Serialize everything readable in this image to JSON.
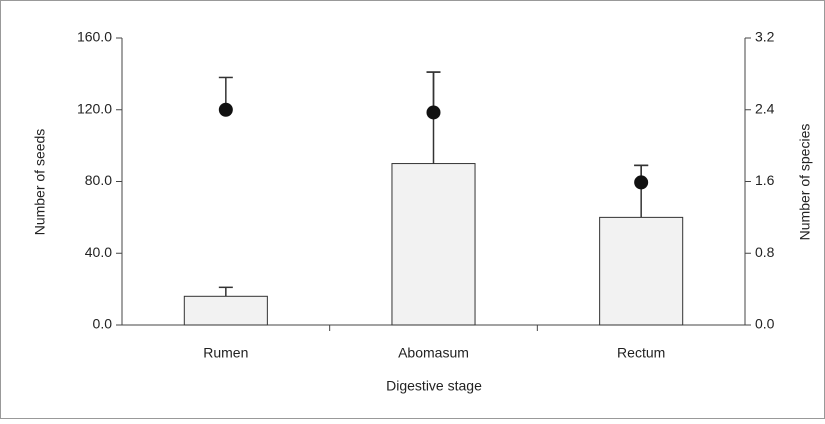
{
  "chart_data": {
    "type": "bar",
    "categories": [
      "Rumen",
      "Abomasum",
      "Rectum"
    ],
    "xlabel": "Digestive stage",
    "ylabel": "Number of seeds",
    "y2label": "Number of species",
    "ylim": [
      0,
      160
    ],
    "yticks": [
      {
        "value": 0,
        "label": "0.0"
      },
      {
        "value": 40,
        "label": "40.0"
      },
      {
        "value": 80,
        "label": "80.0"
      },
      {
        "value": 120,
        "label": "120.0"
      },
      {
        "value": 160,
        "label": "160.0"
      }
    ],
    "y2lim": [
      0,
      3.2
    ],
    "y2ticks": [
      {
        "value": 0,
        "label": "0.0"
      },
      {
        "value": 0.8,
        "label": "0.8"
      },
      {
        "value": 1.6,
        "label": "1.6"
      },
      {
        "value": 2.4,
        "label": "2.4"
      },
      {
        "value": 3.2,
        "label": "3.2"
      }
    ],
    "series": [
      {
        "type": "bar",
        "color": "#f2f2f2",
        "values": [
          16,
          90,
          60
        ],
        "errors": [
          5,
          51,
          29
        ]
      },
      {
        "type": "scatter",
        "axis": "y2",
        "color": "#111111",
        "values": [
          2.4,
          2.37,
          1.59
        ],
        "errors": [
          0.36,
          0.45,
          0.19
        ]
      }
    ]
  }
}
